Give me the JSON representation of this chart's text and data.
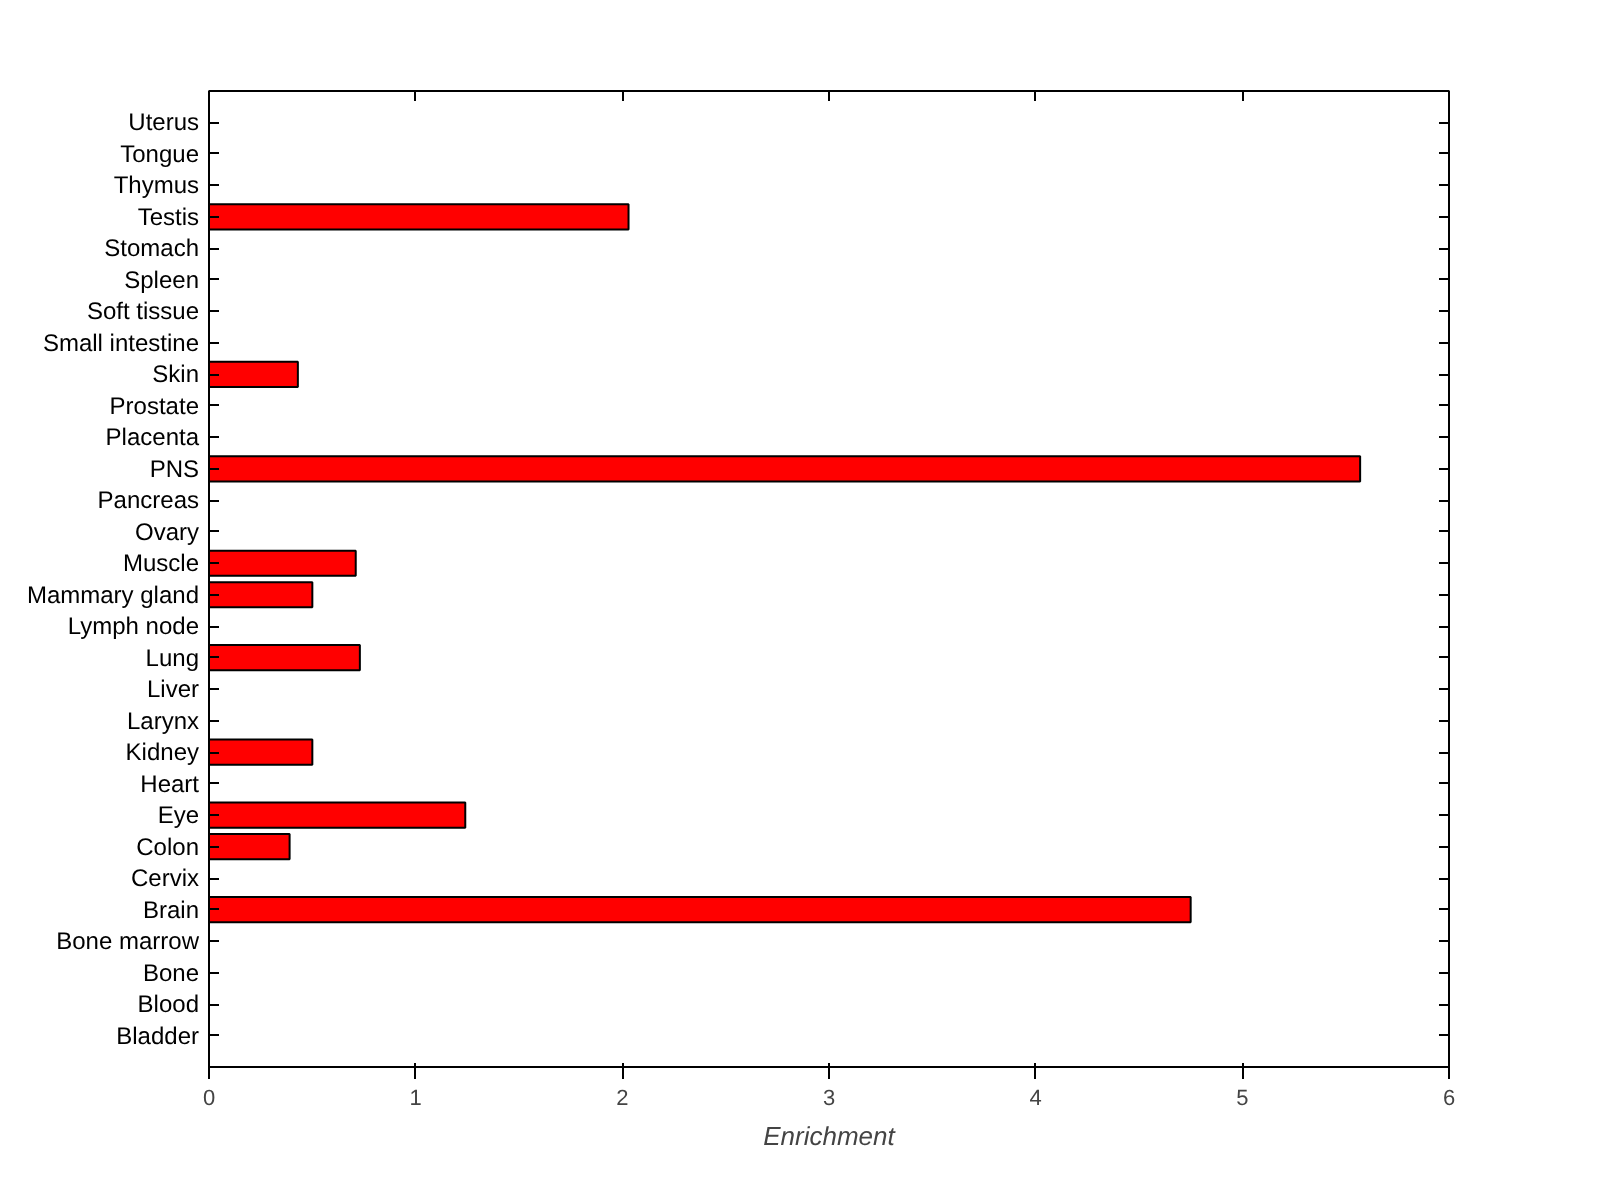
{
  "chart_data": {
    "type": "bar",
    "orientation": "horizontal",
    "xlabel": "Enrichment",
    "categories": [
      "Uterus",
      "Tongue",
      "Thymus",
      "Testis",
      "Stomach",
      "Spleen",
      "Soft tissue",
      "Small intestine",
      "Skin",
      "Prostate",
      "Placenta",
      "PNS",
      "Pancreas",
      "Ovary",
      "Muscle",
      "Mammary gland",
      "Lymph node",
      "Lung",
      "Liver",
      "Larynx",
      "Kidney",
      "Heart",
      "Eye",
      "Colon",
      "Cervix",
      "Brain",
      "Bone marrow",
      "Bone",
      "Blood",
      "Bladder"
    ],
    "values": [
      0,
      0,
      0,
      2.03,
      0,
      0,
      0,
      0,
      0.43,
      0,
      0,
      5.57,
      0,
      0,
      0.71,
      0.5,
      0,
      0.73,
      0,
      0,
      0.5,
      0,
      1.24,
      0.39,
      0,
      4.75,
      0,
      0,
      0,
      0
    ],
    "color": "#ff0000",
    "xlim": [
      0,
      6
    ],
    "xticks": [
      0,
      1,
      2,
      3,
      4,
      5,
      6
    ],
    "grid": false
  }
}
